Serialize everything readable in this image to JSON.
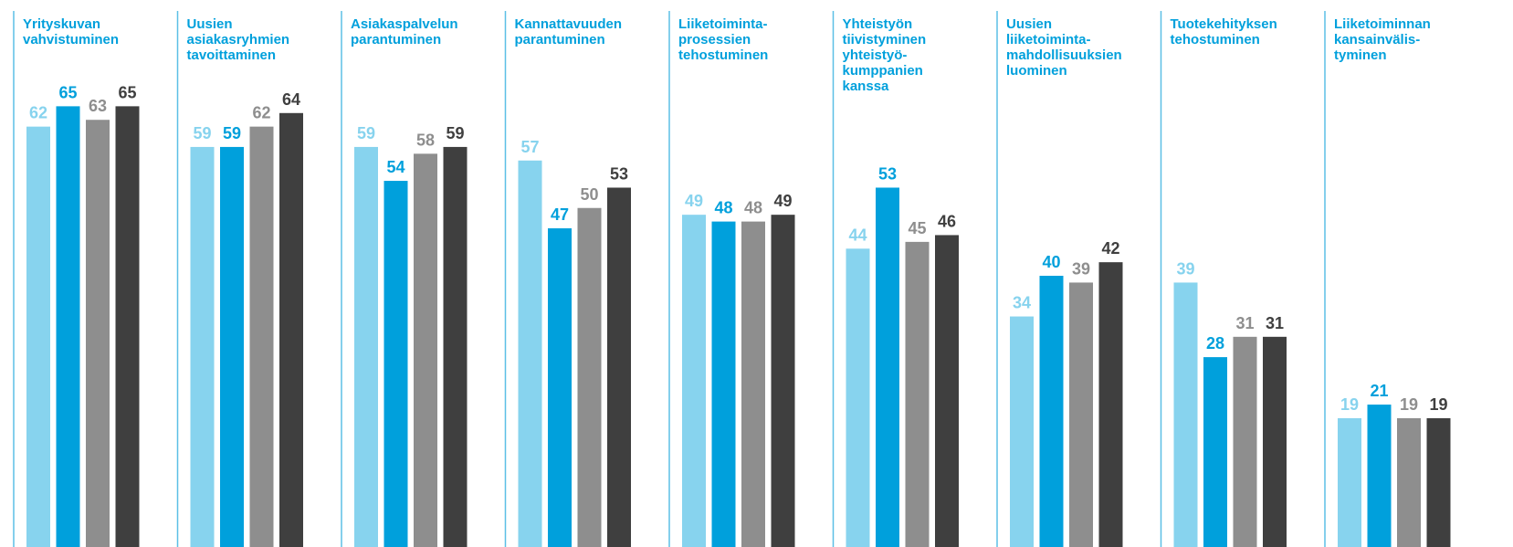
{
  "chart_data": {
    "type": "bar",
    "categories": [
      [
        "Yrityskuvan",
        "vahvistuminen"
      ],
      [
        "Uusien",
        "asiakasryhmien",
        "tavoittaminen"
      ],
      [
        "Asiakaspalvelun",
        "parantuminen"
      ],
      [
        "Kannattavuuden",
        "parantuminen"
      ],
      [
        "Liiketoiminta-",
        "prosessien",
        "tehostuminen"
      ],
      [
        "Yhteistyön",
        "tiivistyminen",
        "yhteistyö-",
        "kumppanien",
        "kanssa"
      ],
      [
        "Uusien",
        "liiketoiminta-",
        "mahdollisuuksien",
        "luominen"
      ],
      [
        "Tuotekehityksen",
        "tehostuminen"
      ],
      [
        "Liiketoiminnan",
        "kansainvälis-",
        "tyminen"
      ]
    ],
    "series": [
      {
        "color": "#87d3ee",
        "values": [
          62,
          59,
          59,
          57,
          49,
          44,
          34,
          39,
          19
        ]
      },
      {
        "color": "#00a0dc",
        "values": [
          65,
          59,
          54,
          47,
          48,
          53,
          40,
          28,
          21
        ]
      },
      {
        "color": "#8e8e8e",
        "values": [
          63,
          62,
          58,
          50,
          48,
          45,
          39,
          31,
          19
        ]
      },
      {
        "color": "#3f3f3f",
        "values": [
          65,
          64,
          59,
          53,
          49,
          46,
          42,
          31,
          19
        ]
      }
    ],
    "ylim": [
      0,
      80
    ],
    "label_color": "#00a0dc",
    "divider_color": "#5bbfe6"
  }
}
